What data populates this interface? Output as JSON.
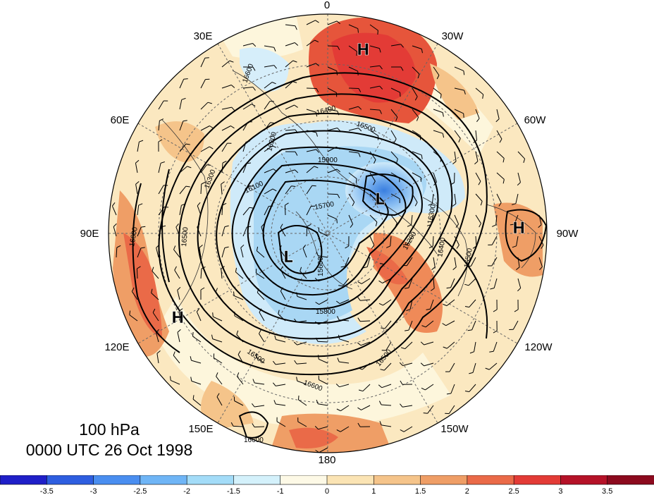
{
  "map": {
    "level_label": "100 hPa",
    "time_label": "0000 UTC 26 Oct 1998",
    "longitude_labels": {
      "top": "0",
      "upper_left": "30E",
      "upper_right": "30W",
      "mid_upper_left": "60E",
      "mid_upper_right": "60W",
      "left": "90E",
      "right": "90W",
      "mid_lower_left": "120E",
      "mid_lower_right": "120W",
      "lower_left": "150E",
      "lower_right": "150W",
      "bottom": "180"
    },
    "pressure_systems": [
      {
        "symbol": "H",
        "region": "north-atlantic"
      },
      {
        "symbol": "L",
        "region": "baffin-bay"
      },
      {
        "symbol": "L",
        "region": "siberian-arctic"
      },
      {
        "symbol": "H",
        "region": "central-asia"
      },
      {
        "symbol": "H",
        "region": "eastern-north-america"
      }
    ],
    "contour_labels": [
      "16400",
      "16500",
      "16600",
      "16200",
      "15900",
      "16100",
      "16300",
      "15700",
      "15600",
      "15800",
      "16500",
      "16600",
      "16600",
      "16500",
      "16400",
      "16200",
      "16300",
      "16500",
      "16600",
      "16500"
    ],
    "colors": {
      "cold_strong": "#3c8cdc",
      "cold": "#a0d2f0",
      "neutral": "#fff6dc",
      "warm": "#f6cc8c",
      "hot": "#e14632"
    }
  },
  "colorbar": {
    "ticks": [
      "-3.5",
      "-3",
      "-2.5",
      "-2",
      "-1.5",
      "-1",
      "0",
      "1",
      "1.5",
      "2",
      "2.5",
      "3",
      "3.5"
    ],
    "colors": [
      "#1f1fc8",
      "#2e5ee0",
      "#4a8ef0",
      "#6fb5f6",
      "#a3dcf8",
      "#d4f1fb",
      "#fdf9e6",
      "#fbe4b4",
      "#f5c48a",
      "#ef9e66",
      "#ea6a48",
      "#e33b36",
      "#b51228",
      "#8c0a1e"
    ]
  }
}
